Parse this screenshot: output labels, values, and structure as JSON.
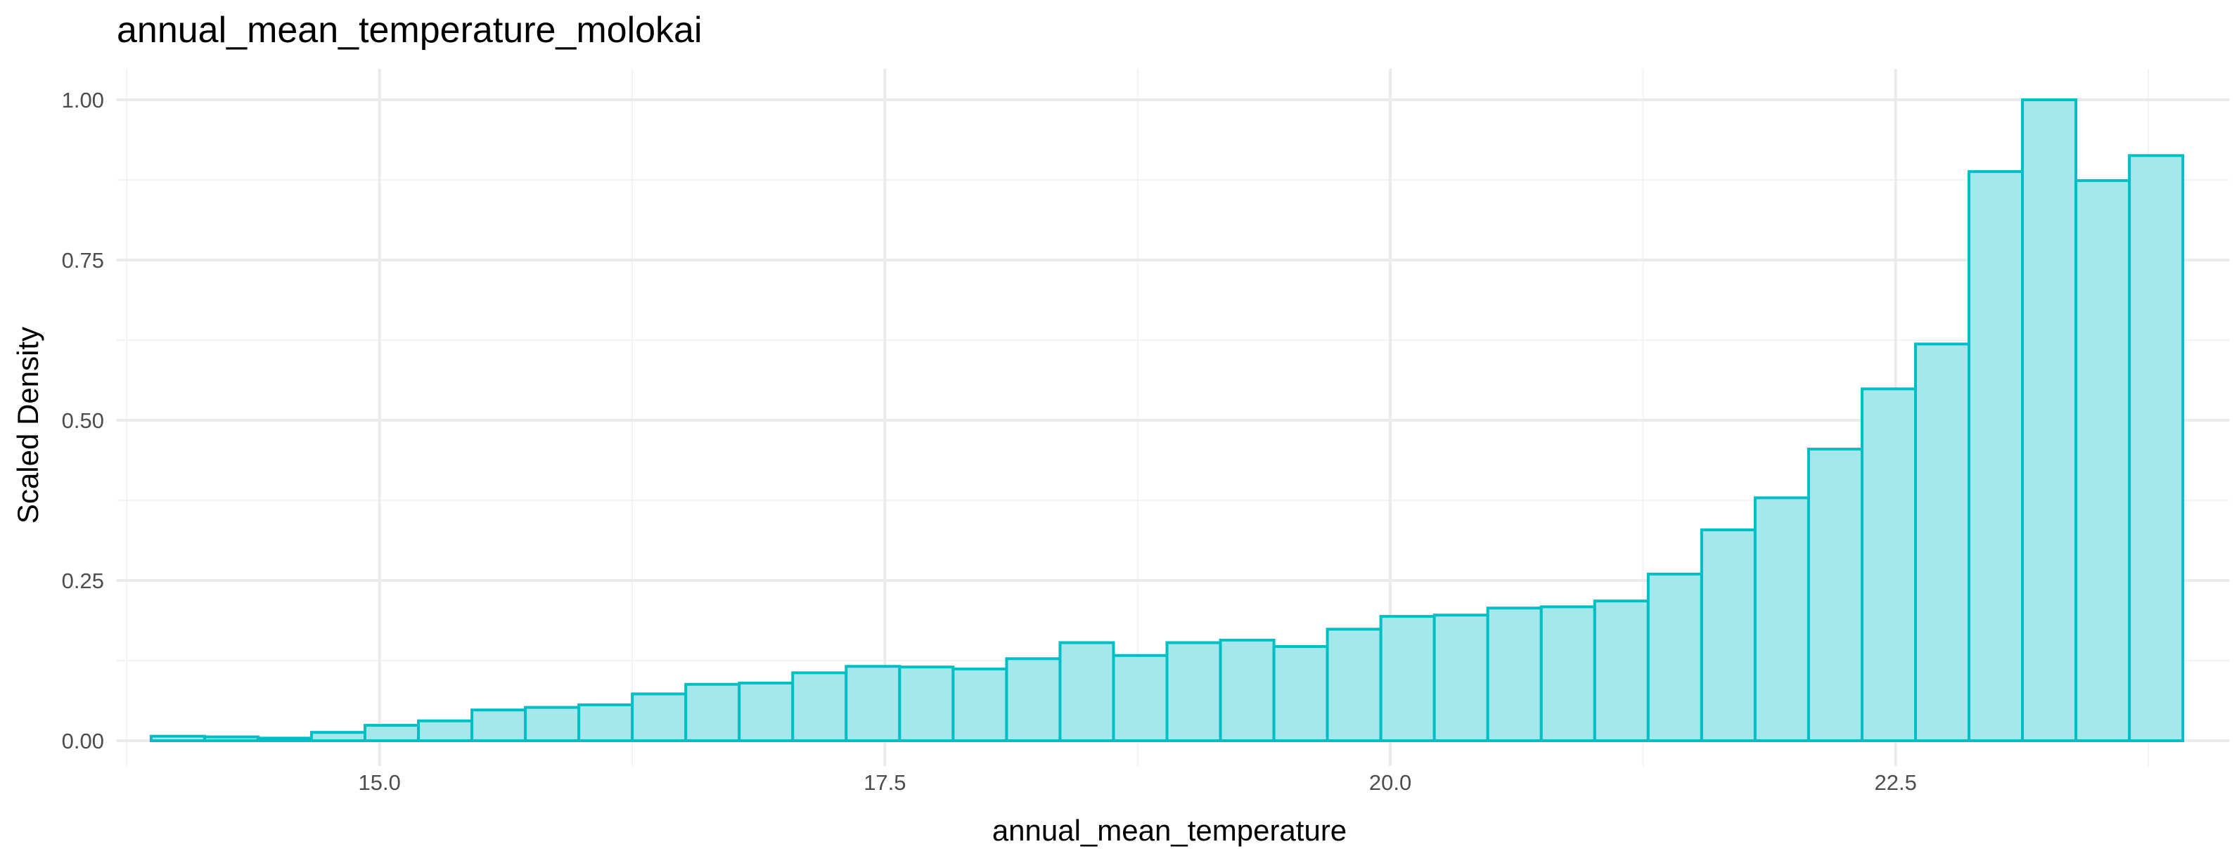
{
  "chart_data": {
    "type": "bar",
    "subtype": "histogram",
    "title": "annual_mean_temperature_molokai",
    "xlabel": "annual_mean_temperature",
    "ylabel": "Scaled Density",
    "xlim": [
      13.7,
      24.15
    ],
    "ylim": [
      0,
      1.0
    ],
    "x_ticks": [
      15.0,
      17.5,
      20.0,
      22.5
    ],
    "x_tick_labels": [
      "15.0",
      "17.5",
      "20.0",
      "22.5"
    ],
    "y_ticks": [
      0.0,
      0.25,
      0.5,
      0.75,
      1.0
    ],
    "y_tick_labels": [
      "0.00",
      "0.25",
      "0.50",
      "0.75",
      "1.00"
    ],
    "grid": true,
    "legend": "none",
    "bin_start": 13.87,
    "bin_width": 0.2645,
    "values": [
      0.007,
      0.006,
      0.004,
      0.013,
      0.024,
      0.031,
      0.048,
      0.052,
      0.056,
      0.073,
      0.088,
      0.09,
      0.106,
      0.116,
      0.115,
      0.112,
      0.128,
      0.153,
      0.133,
      0.153,
      0.157,
      0.147,
      0.174,
      0.194,
      0.196,
      0.207,
      0.209,
      0.218,
      0.26,
      0.329,
      0.379,
      0.455,
      0.549,
      0.619,
      0.888,
      1.0,
      0.874,
      0.913
    ],
    "colors": {
      "bar_fill": "#a5e8eb",
      "bar_stroke": "#00bfc4"
    }
  }
}
